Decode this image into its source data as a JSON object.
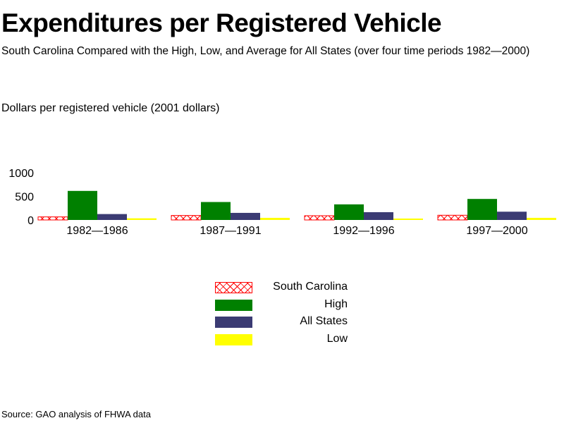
{
  "page": {
    "title": "Expenditures per Registered Vehicle",
    "subtitle": "South Carolina Compared with the High, Low, and Average for All States (over four time periods 1982—2000)",
    "ylabel": "Dollars per registered vehicle   (2001 dollars)",
    "source": "Source: GAO analysis of FHWA data"
  },
  "colors": {
    "south_carolina": "#ff0000",
    "high": "#008000",
    "all_states": "#3b3b73",
    "low": "#ffff00"
  },
  "chart_data": {
    "type": "bar",
    "title": "Expenditures per Registered Vehicle",
    "subtitle": "South Carolina Compared with the High, Low, and Average for All States (over four time periods 1982—2000)",
    "ylabel": "Dollars per registered vehicle   (2001 dollars)",
    "xlabel": "",
    "categories": [
      "1982—1986",
      "1987—1991",
      "1992—1996",
      "1997—2000"
    ],
    "y_ticks": [
      "0",
      "500",
      "1000"
    ],
    "ylim": [
      0,
      1000
    ],
    "grid": false,
    "legend_position": "bottom-center",
    "series": [
      {
        "name": "South Carolina",
        "values": [
          65,
          95,
          90,
          100
        ],
        "color": "#ff0000",
        "pattern": "crosshatch"
      },
      {
        "name": "High",
        "values": [
          615,
          380,
          330,
          445
        ],
        "color": "#008000",
        "pattern": "solid"
      },
      {
        "name": "All States",
        "values": [
          125,
          150,
          165,
          175
        ],
        "color": "#3b3b73",
        "pattern": "solid"
      },
      {
        "name": "Low",
        "values": [
          35,
          45,
          30,
          45
        ],
        "color": "#ffff00",
        "pattern": "solid"
      }
    ]
  }
}
